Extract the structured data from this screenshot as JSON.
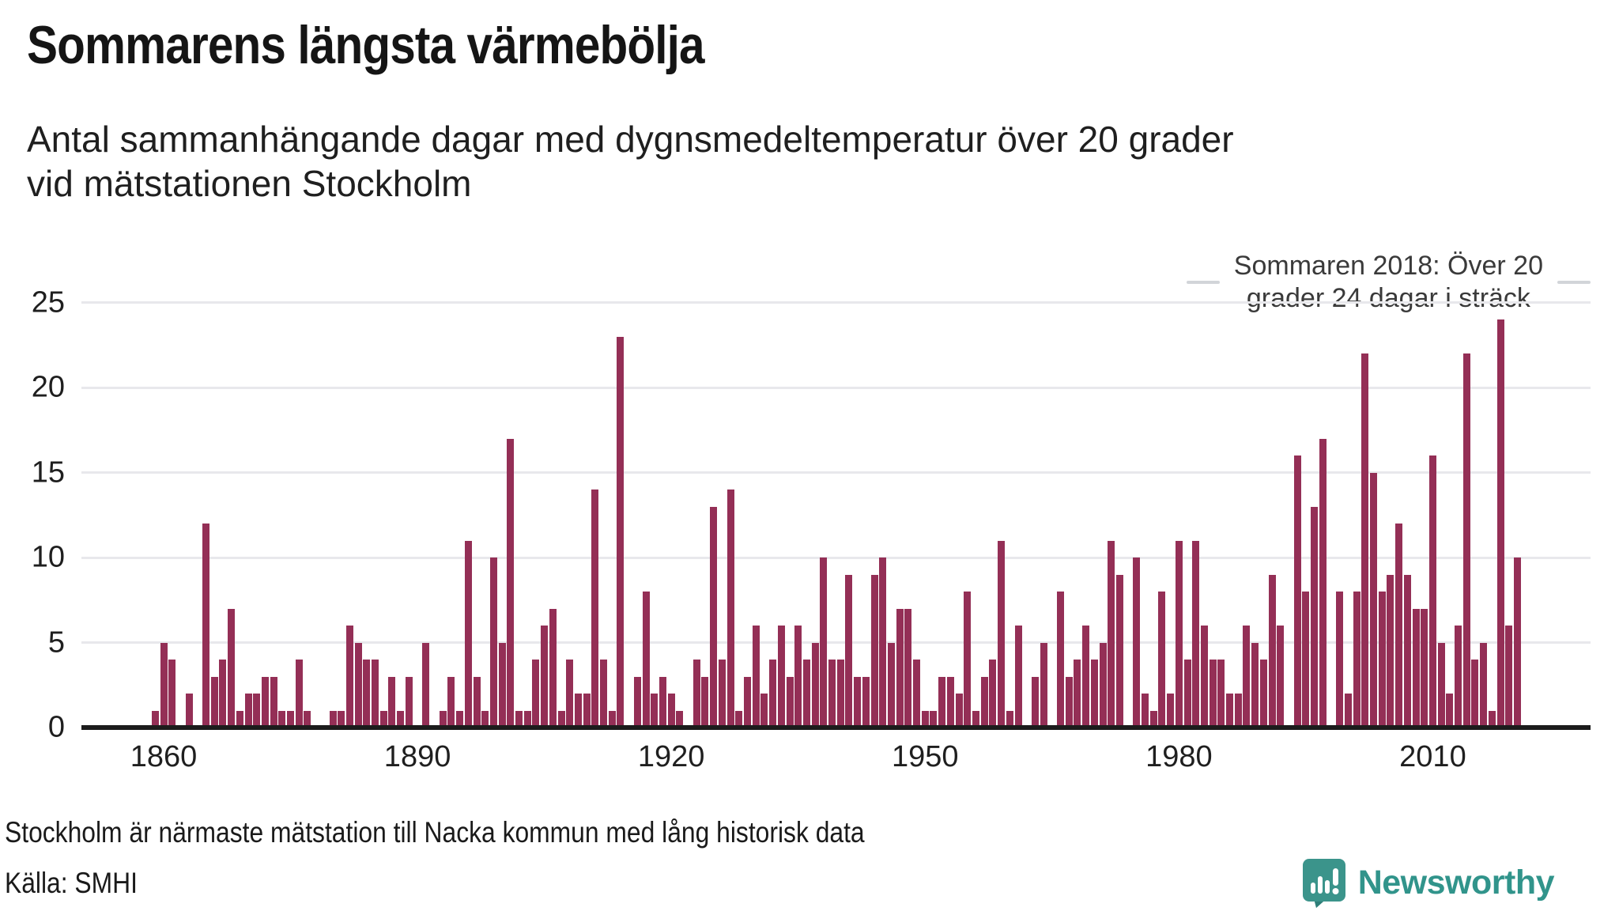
{
  "title": "Sommarens längsta värmebölja",
  "subtitle": {
    "line1": "Antal sammanhängande dagar med dygnsmedeltemperatur över 20 grader",
    "line2": "vid mätstationen Stockholm"
  },
  "annotation": {
    "line1": "Sommaren 2018: Över 20",
    "line2": "grader 24 dagar i sträck"
  },
  "footer": {
    "note": "Stockholm är närmaste mätstation till Nacka kommun med lång historisk data",
    "source": "Källa: SMHI"
  },
  "logo": {
    "text": "Newsworthy"
  },
  "colors": {
    "bar": "#942F56",
    "axis": "#1c1c1c",
    "gridline": "#e8e8ec",
    "logo_teal": "#31948B",
    "logo_teal_dark": "#2E7E78",
    "annotation_text": "#3a3a3a"
  },
  "chart_data": {
    "type": "bar",
    "title": "Sommarens längsta värmebölja",
    "xlabel": "",
    "ylabel": "Antal sammanhängande dagar med dygnsmedeltemperatur över 20 grader vid mätstationen Stockholm",
    "ylim": [
      0,
      25
    ],
    "grid": true,
    "yticks": [
      0,
      5,
      10,
      15,
      20,
      25
    ],
    "xticks": [
      1860,
      1890,
      1920,
      1950,
      1980,
      2010
    ],
    "years": [
      1859,
      1860,
      1861,
      1862,
      1863,
      1864,
      1865,
      1866,
      1867,
      1868,
      1869,
      1870,
      1871,
      1872,
      1873,
      1874,
      1875,
      1876,
      1877,
      1878,
      1879,
      1880,
      1881,
      1882,
      1883,
      1884,
      1885,
      1886,
      1887,
      1888,
      1889,
      1890,
      1891,
      1892,
      1893,
      1894,
      1895,
      1896,
      1897,
      1898,
      1899,
      1900,
      1901,
      1902,
      1903,
      1904,
      1905,
      1906,
      1907,
      1908,
      1909,
      1910,
      1911,
      1912,
      1913,
      1914,
      1915,
      1916,
      1917,
      1918,
      1919,
      1920,
      1921,
      1922,
      1923,
      1924,
      1925,
      1926,
      1927,
      1928,
      1929,
      1930,
      1931,
      1932,
      1933,
      1934,
      1935,
      1936,
      1937,
      1938,
      1939,
      1940,
      1941,
      1942,
      1943,
      1944,
      1945,
      1946,
      1947,
      1948,
      1949,
      1950,
      1951,
      1952,
      1953,
      1954,
      1955,
      1956,
      1957,
      1958,
      1959,
      1960,
      1961,
      1962,
      1963,
      1964,
      1965,
      1966,
      1967,
      1968,
      1969,
      1970,
      1971,
      1972,
      1973,
      1974,
      1975,
      1976,
      1977,
      1978,
      1979,
      1980,
      1981,
      1982,
      1983,
      1984,
      1985,
      1986,
      1987,
      1988,
      1989,
      1990,
      1991,
      1992,
      1993,
      1994,
      1995,
      1996,
      1997,
      1998,
      1999,
      2000,
      2001,
      2002,
      2003,
      2004,
      2005,
      2006,
      2007,
      2008,
      2009,
      2010,
      2011,
      2012,
      2013,
      2014,
      2015,
      2016,
      2017,
      2018,
      2019,
      2020
    ],
    "values": [
      1,
      5,
      4,
      0,
      2,
      0,
      12,
      3,
      4,
      7,
      1,
      2,
      2,
      3,
      3,
      1,
      1,
      4,
      1,
      0,
      0,
      1,
      1,
      6,
      5,
      4,
      4,
      1,
      3,
      1,
      3,
      0,
      5,
      0,
      1,
      3,
      1,
      11,
      3,
      1,
      10,
      5,
      17,
      1,
      1,
      4,
      6,
      7,
      1,
      4,
      2,
      2,
      14,
      4,
      1,
      23,
      0,
      3,
      8,
      2,
      3,
      2,
      1,
      0,
      4,
      3,
      13,
      4,
      14,
      1,
      3,
      6,
      2,
      4,
      6,
      3,
      6,
      4,
      5,
      10,
      4,
      4,
      9,
      3,
      3,
      9,
      10,
      5,
      7,
      7,
      4,
      1,
      1,
      3,
      3,
      2,
      8,
      1,
      3,
      4,
      11,
      1,
      6,
      0,
      3,
      5,
      0,
      8,
      3,
      4,
      6,
      4,
      5,
      11,
      9,
      0,
      10,
      2,
      1,
      8,
      2,
      11,
      4,
      11,
      6,
      4,
      4,
      2,
      2,
      6,
      5,
      4,
      9,
      6,
      0,
      16,
      8,
      13,
      17,
      0,
      8,
      2,
      8,
      22,
      15,
      8,
      9,
      12,
      9,
      7,
      7,
      16,
      5,
      2,
      6,
      22,
      4,
      5,
      1,
      24,
      6,
      10
    ]
  }
}
